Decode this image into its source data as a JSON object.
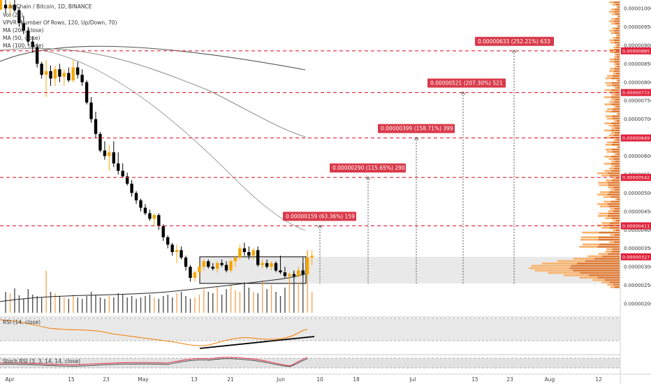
{
  "legend": {
    "title": "…larChain / Bitcoin, 1D, BINANCE",
    "vol": "Vol (20)",
    "vpvr": "VPVR (Number Of Rows, 120, Up/Down, 70)",
    "ma200": "MA (200, close)",
    "ma50": "MA (50, close)",
    "ma100": "MA (100, close)"
  },
  "rsi_label": "RSI (14, close)",
  "stoch_label": "Stoch RSI (3, 3, 14, 14, close)",
  "colors": {
    "up": "#f7a600",
    "down": "#000000",
    "target_line": "#e0223b",
    "target_box": "#d93a4a",
    "ma": "#555555",
    "rsi": "#f57c00",
    "vpvr_up": "#f9b26b",
    "vpvr_down": "#e0772e"
  },
  "chart_data": {
    "type": "candlestick",
    "title": "…larChain / Bitcoin, 1D, BINANCE",
    "x_ticks": [
      "Apr",
      "15",
      "23",
      "May",
      "13",
      "21",
      "Jun",
      "10",
      "18",
      "Jul",
      "15",
      "23",
      "Aug",
      "12"
    ],
    "y_ticks": [
      "0.00001000",
      "0.00000950",
      "0.00000900",
      "0.00000850",
      "0.00000800",
      "0.00000750",
      "0.00000700",
      "0.00000650",
      "0.00000600",
      "0.00000550",
      "0.00000500",
      "0.00000450",
      "0.00000400",
      "0.00000350",
      "0.00000300",
      "0.00000250",
      "0.00000200"
    ],
    "price_levels": [
      "0.00000885",
      "0.00000772",
      "0.00000649",
      "0.00000542",
      "0.00000411",
      "0.00000327"
    ],
    "current_price_color": "#e0223b",
    "targets": [
      {
        "label": "0.00000159 (63.36%) 159",
        "level": 4.11e-06
      },
      {
        "label": "0.00000290 (115.65%) 290",
        "level": 5.42e-06
      },
      {
        "label": "0.00000399 (158.71%) 399",
        "level": 6.49e-06
      },
      {
        "label": "0.00000521 (207.30%) 521",
        "level": 7.72e-06
      },
      {
        "label": "0.00000633 (252.21%) 633",
        "level": 8.85e-06
      }
    ],
    "range_box": {
      "low": 2.55e-06,
      "high": 3.27e-06
    },
    "candles": [
      {
        "o": 1010,
        "h": 1030,
        "l": 985,
        "c": 1000
      },
      {
        "o": 1000,
        "h": 1020,
        "l": 975,
        "c": 1010
      },
      {
        "o": 1010,
        "h": 1025,
        "l": 990,
        "c": 995
      },
      {
        "o": 995,
        "h": 1005,
        "l": 950,
        "c": 960
      },
      {
        "o": 960,
        "h": 980,
        "l": 930,
        "c": 940
      },
      {
        "o": 940,
        "h": 950,
        "l": 900,
        "c": 910
      },
      {
        "o": 910,
        "h": 925,
        "l": 880,
        "c": 895
      },
      {
        "o": 895,
        "h": 905,
        "l": 840,
        "c": 850
      },
      {
        "o": 850,
        "h": 855,
        "l": 810,
        "c": 820
      },
      {
        "o": 820,
        "h": 860,
        "l": 760,
        "c": 830
      },
      {
        "o": 830,
        "h": 845,
        "l": 790,
        "c": 810
      },
      {
        "o": 810,
        "h": 845,
        "l": 790,
        "c": 835
      },
      {
        "o": 835,
        "h": 850,
        "l": 800,
        "c": 815
      },
      {
        "o": 815,
        "h": 835,
        "l": 790,
        "c": 825
      },
      {
        "o": 825,
        "h": 840,
        "l": 800,
        "c": 805
      },
      {
        "o": 805,
        "h": 860,
        "l": 800,
        "c": 840
      },
      {
        "o": 840,
        "h": 855,
        "l": 810,
        "c": 820
      },
      {
        "o": 820,
        "h": 835,
        "l": 790,
        "c": 800
      },
      {
        "o": 800,
        "h": 805,
        "l": 740,
        "c": 745
      },
      {
        "o": 745,
        "h": 760,
        "l": 690,
        "c": 700
      },
      {
        "o": 700,
        "h": 720,
        "l": 650,
        "c": 660
      },
      {
        "o": 660,
        "h": 665,
        "l": 610,
        "c": 615
      },
      {
        "o": 615,
        "h": 640,
        "l": 590,
        "c": 600
      },
      {
        "o": 600,
        "h": 630,
        "l": 560,
        "c": 610
      },
      {
        "o": 610,
        "h": 640,
        "l": 570,
        "c": 580
      },
      {
        "o": 580,
        "h": 610,
        "l": 550,
        "c": 560
      },
      {
        "o": 560,
        "h": 580,
        "l": 540,
        "c": 545
      },
      {
        "o": 545,
        "h": 555,
        "l": 520,
        "c": 525
      },
      {
        "o": 525,
        "h": 535,
        "l": 490,
        "c": 500
      },
      {
        "o": 500,
        "h": 505,
        "l": 470,
        "c": 480
      },
      {
        "o": 480,
        "h": 485,
        "l": 450,
        "c": 460
      },
      {
        "o": 460,
        "h": 470,
        "l": 440,
        "c": 445
      },
      {
        "o": 445,
        "h": 455,
        "l": 425,
        "c": 430
      },
      {
        "o": 430,
        "h": 445,
        "l": 410,
        "c": 440
      },
      {
        "o": 440,
        "h": 445,
        "l": 400,
        "c": 410
      },
      {
        "o": 410,
        "h": 415,
        "l": 370,
        "c": 380
      },
      {
        "o": 380,
        "h": 385,
        "l": 350,
        "c": 360
      },
      {
        "o": 360,
        "h": 365,
        "l": 330,
        "c": 340
      },
      {
        "o": 340,
        "h": 360,
        "l": 310,
        "c": 345
      },
      {
        "o": 345,
        "h": 355,
        "l": 320,
        "c": 325
      },
      {
        "o": 325,
        "h": 330,
        "l": 290,
        "c": 300
      },
      {
        "o": 300,
        "h": 305,
        "l": 260,
        "c": 270
      },
      {
        "o": 270,
        "h": 290,
        "l": 260,
        "c": 285
      },
      {
        "o": 285,
        "h": 310,
        "l": 270,
        "c": 300
      },
      {
        "o": 300,
        "h": 320,
        "l": 290,
        "c": 315
      },
      {
        "o": 315,
        "h": 320,
        "l": 295,
        "c": 300
      },
      {
        "o": 300,
        "h": 310,
        "l": 290,
        "c": 295
      },
      {
        "o": 295,
        "h": 315,
        "l": 285,
        "c": 310
      },
      {
        "o": 310,
        "h": 320,
        "l": 300,
        "c": 305
      },
      {
        "o": 305,
        "h": 315,
        "l": 285,
        "c": 290
      },
      {
        "o": 290,
        "h": 320,
        "l": 285,
        "c": 315
      },
      {
        "o": 315,
        "h": 330,
        "l": 300,
        "c": 325
      },
      {
        "o": 325,
        "h": 360,
        "l": 320,
        "c": 350
      },
      {
        "o": 350,
        "h": 365,
        "l": 330,
        "c": 340
      },
      {
        "o": 340,
        "h": 355,
        "l": 320,
        "c": 330
      },
      {
        "o": 330,
        "h": 350,
        "l": 320,
        "c": 345
      },
      {
        "o": 345,
        "h": 355,
        "l": 300,
        "c": 305
      },
      {
        "o": 305,
        "h": 320,
        "l": 295,
        "c": 310
      },
      {
        "o": 310,
        "h": 320,
        "l": 295,
        "c": 300
      },
      {
        "o": 300,
        "h": 315,
        "l": 290,
        "c": 310
      },
      {
        "o": 310,
        "h": 315,
        "l": 285,
        "c": 290
      },
      {
        "o": 290,
        "h": 330,
        "l": 280,
        "c": 285
      },
      {
        "o": 285,
        "h": 300,
        "l": 270,
        "c": 275
      },
      {
        "o": 275,
        "h": 285,
        "l": 265,
        "c": 280
      },
      {
        "o": 280,
        "h": 290,
        "l": 270,
        "c": 275
      },
      {
        "o": 275,
        "h": 300,
        "l": 270,
        "c": 290
      },
      {
        "o": 290,
        "h": 310,
        "l": 275,
        "c": 280
      },
      {
        "o": 280,
        "h": 340,
        "l": 270,
        "c": 325
      },
      {
        "o": 325,
        "h": 345,
        "l": 305,
        "c": 330
      }
    ]
  }
}
